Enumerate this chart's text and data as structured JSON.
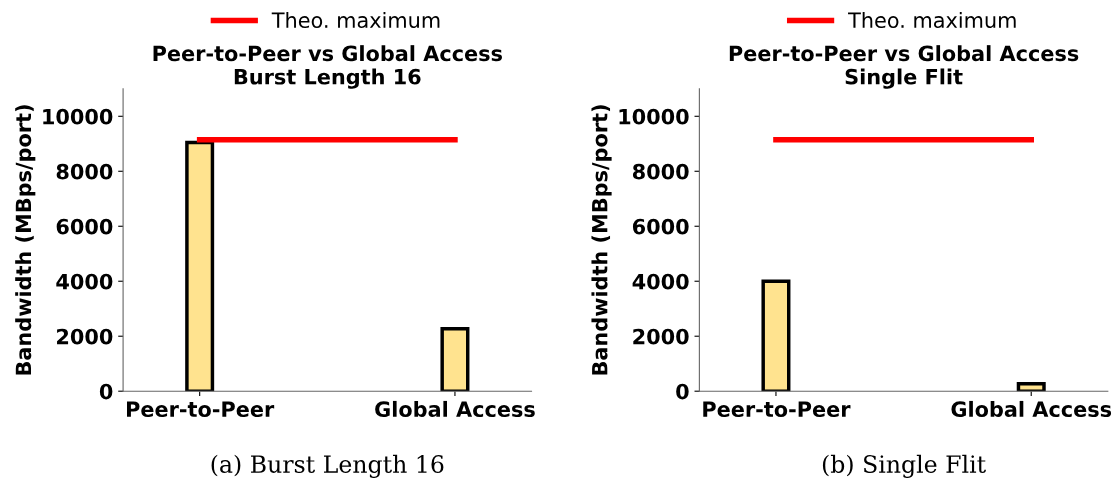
{
  "chart_data": [
    {
      "type": "bar",
      "title": "Peer-to-Peer vs Global Access\nBurst Length 16",
      "ylabel": "Bandwidth (MBps/port)",
      "categories": [
        "Peer-to-Peer",
        "Global Access"
      ],
      "series": [
        {
          "color": "#ffe38f",
          "values": [
            9050,
            2270
          ]
        },
        {
          "type": "line",
          "name": "Theo. maximum",
          "color": "#ff0000",
          "values": [
            9150,
            9150
          ]
        }
      ],
      "ylim": [
        0,
        11000
      ],
      "yticks": [
        0,
        2000,
        4000,
        6000,
        8000,
        10000
      ],
      "legend": "top",
      "grid": false,
      "annotations": [
        "(a) Burst Length 16"
      ]
    },
    {
      "type": "bar",
      "title": "Peer-to-Peer vs Global Access\nSingle Flit",
      "ylabel": "Bandwidth (MBps/port)",
      "categories": [
        "Peer-to-Peer",
        "Global Access"
      ],
      "series": [
        {
          "color": "#ffe38f",
          "values": [
            4000,
            270
          ]
        },
        {
          "type": "line",
          "name": "Theo. maximum",
          "color": "#ff0000",
          "values": [
            9150,
            9150
          ]
        }
      ],
      "ylim": [
        0,
        11000
      ],
      "yticks": [
        0,
        2000,
        4000,
        6000,
        8000,
        10000
      ],
      "legend": "top",
      "grid": false,
      "annotations": [
        "(b) Single Flit"
      ]
    }
  ]
}
